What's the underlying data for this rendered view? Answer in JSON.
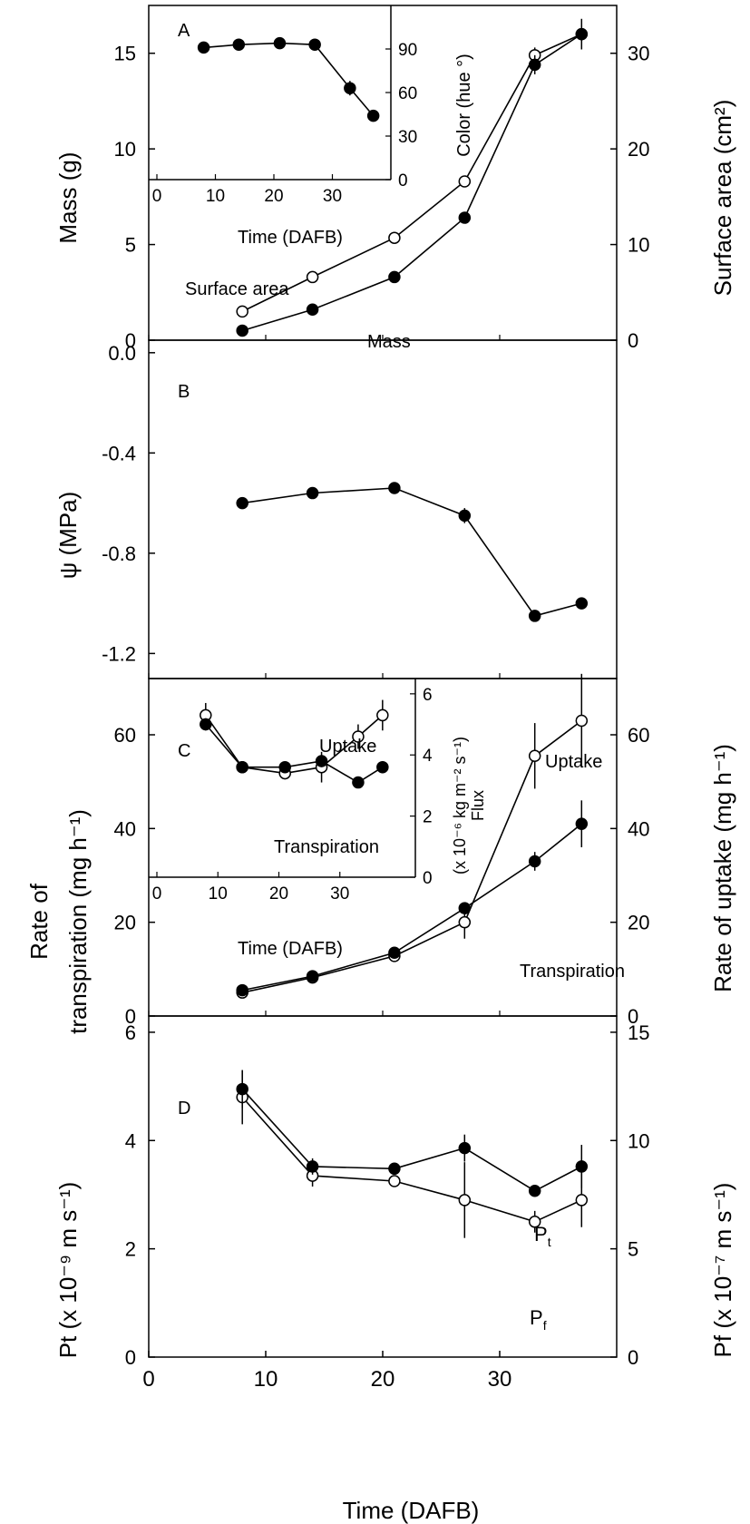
{
  "chart_data": [
    {
      "panel": "A",
      "type": "scatter",
      "panel_label": "A",
      "xlim": [
        0,
        40
      ],
      "ylim": [
        0,
        17.5
      ],
      "ylim_right": [
        0,
        35
      ],
      "ylabel": "Mass (g)",
      "ylabel_right": "Surface area (cm²)",
      "yticks": [
        0,
        5,
        10,
        15
      ],
      "yticks_right": [
        0,
        10,
        20,
        30
      ],
      "series": [
        {
          "name": "Mass",
          "axis": "left",
          "marker": "filled",
          "x": [
            8,
            14,
            21,
            27,
            33,
            37
          ],
          "y": [
            0.5,
            1.6,
            3.3,
            6.4,
            14.4,
            16.0
          ],
          "err": [
            0.1,
            0.1,
            0.1,
            0.3,
            0.5,
            0.2
          ]
        },
        {
          "name": "Surface area",
          "axis": "right",
          "marker": "open",
          "x": [
            8,
            14,
            21,
            27,
            33,
            37
          ],
          "y": [
            3.0,
            6.6,
            10.7,
            16.6,
            29.8,
            32.0
          ],
          "err": [
            0.2,
            0.2,
            0.3,
            0.6,
            0.8,
            1.6
          ]
        }
      ],
      "annotations": [
        "Surface area",
        "Mass"
      ],
      "inset": {
        "xlabel": "Time (DAFB)",
        "ylabel_right": "Color (hue °)",
        "xlim": [
          0,
          40
        ],
        "ylim": [
          0,
          120
        ],
        "xticks": [
          0,
          10,
          20,
          30
        ],
        "yticks": [
          0,
          30,
          60,
          90
        ],
        "series": [
          {
            "marker": "filled",
            "x": [
              8,
              14,
              21,
              27,
              33,
              37
            ],
            "y": [
              91,
              93,
              94,
              93,
              63,
              44
            ],
            "err": [
              1,
              1,
              1,
              1,
              5,
              2
            ]
          }
        ]
      }
    },
    {
      "panel": "B",
      "type": "line",
      "panel_label": "B",
      "xlim": [
        0,
        40
      ],
      "ylim": [
        -1.3,
        0.05
      ],
      "ylabel": "ψ (MPa)",
      "yticks": [
        0.0,
        -0.4,
        -0.8,
        -1.2
      ],
      "yticklabels": [
        "0.0",
        "-0.4",
        "-0.8",
        "-1.2"
      ],
      "series": [
        {
          "marker": "filled",
          "x": [
            8,
            14,
            21,
            27,
            33,
            37
          ],
          "y": [
            -0.6,
            -0.56,
            -0.54,
            -0.65,
            -1.05,
            -1.0
          ],
          "err": [
            0.01,
            0.01,
            0.01,
            0.03,
            0.01,
            0.02
          ]
        }
      ]
    },
    {
      "panel": "C",
      "type": "scatter",
      "panel_label": "C",
      "xlim": [
        0,
        40
      ],
      "ylim": [
        0,
        72
      ],
      "ylim_right": [
        0,
        72
      ],
      "ylabel_line1": "Rate of",
      "ylabel_line2": "transpiration (mg h⁻¹)",
      "ylabel_right": "Rate of uptake (mg h⁻¹)",
      "yticks": [
        0,
        20,
        40,
        60
      ],
      "yticks_right": [
        0,
        20,
        40,
        60
      ],
      "series": [
        {
          "name": "Transpiration",
          "axis": "left",
          "marker": "filled",
          "x": [
            8,
            14,
            21,
            27,
            33,
            37
          ],
          "y": [
            5.5,
            8.5,
            13.5,
            23.0,
            33.0,
            41.0
          ],
          "err": [
            0.4,
            0.5,
            0.6,
            1.0,
            2.0,
            5.0
          ]
        },
        {
          "name": "Uptake",
          "axis": "right",
          "marker": "open",
          "x": [
            8,
            14,
            21,
            27,
            33,
            37
          ],
          "y": [
            5.0,
            8.2,
            12.8,
            20.0,
            55.5,
            63.0
          ],
          "err": [
            0.4,
            0.5,
            0.8,
            3.5,
            7.0,
            10.0
          ]
        }
      ],
      "annotations": [
        "Uptake",
        "Transpiration"
      ],
      "inset": {
        "xlabel": "Time (DAFB)",
        "ylabel_right_line1": "Flux",
        "ylabel_right_line2": "(x 10⁻⁶ kg m⁻² s⁻¹)",
        "xlim": [
          0,
          40
        ],
        "ylim": [
          0,
          6.5
        ],
        "xticks": [
          0,
          10,
          20,
          30
        ],
        "yticks": [
          0,
          2,
          4,
          6
        ],
        "annotations": [
          "Uptake",
          "Transpiration"
        ],
        "series": [
          {
            "name": "Transpiration",
            "marker": "filled",
            "x": [
              8,
              14,
              21,
              27,
              33,
              37
            ],
            "y": [
              5.0,
              3.6,
              3.6,
              3.8,
              3.1,
              3.6
            ],
            "err": [
              0.2,
              0.1,
              0.1,
              0.2,
              0.1,
              0.2
            ]
          },
          {
            "name": "Uptake",
            "marker": "open",
            "x": [
              8,
              14,
              21,
              27,
              33,
              37
            ],
            "y": [
              5.3,
              3.6,
              3.4,
              3.6,
              4.6,
              5.3
            ],
            "err": [
              0.4,
              0.1,
              0.2,
              0.5,
              0.4,
              0.5
            ]
          }
        ]
      }
    },
    {
      "panel": "D",
      "type": "scatter",
      "panel_label": "D",
      "xlim": [
        0,
        40
      ],
      "ylim": [
        0,
        6.3
      ],
      "ylim_right": [
        0,
        15.75
      ],
      "ylabel": "Pt (x 10⁻⁹ m s⁻¹)",
      "ylabel_right": "Pf (x 10⁻⁷ m s⁻¹)",
      "xlabel": "Time (DAFB)",
      "xticks": [
        0,
        10,
        20,
        30
      ],
      "yticks": [
        0,
        2,
        4,
        6
      ],
      "yticks_right": [
        0,
        5,
        10,
        15
      ],
      "series": [
        {
          "name": "Pt",
          "axis": "left",
          "marker": "filled",
          "x": [
            8,
            14,
            21,
            27,
            33,
            37
          ],
          "y": [
            4.95,
            3.52,
            3.48,
            3.86,
            3.07,
            3.52
          ],
          "err": [
            0.35,
            0.15,
            0.1,
            0.25,
            0.1,
            0.4
          ]
        },
        {
          "name": "Pf",
          "axis": "left",
          "marker": "open",
          "x": [
            8,
            14,
            21,
            27,
            33,
            37
          ],
          "y": [
            4.8,
            3.35,
            3.25,
            2.9,
            2.5,
            2.9
          ],
          "err": [
            0.5,
            0.2,
            0.1,
            0.7,
            0.2,
            0.5
          ]
        }
      ],
      "annotations": [
        "Pt",
        "Pf"
      ]
    }
  ],
  "labels": {
    "A": "A",
    "B": "B",
    "C": "C",
    "D": "D",
    "surface_area": "Surface area",
    "mass": "Mass",
    "uptake": "Uptake",
    "transpiration": "Transpiration",
    "pt": "P",
    "pt_sub": "t",
    "pf": "P",
    "pf_sub": "f",
    "time": "Time (DAFB)",
    "ylabel_mass": "Mass (g)",
    "ylabel_surface": "Surface area (cm²)",
    "ylabel_psi": "ψ (MPa)",
    "ylabel_rate1": "Rate of",
    "ylabel_rate2": "transpiration (mg h⁻¹)",
    "ylabel_uptake": "Rate of uptake (mg h⁻¹)",
    "ylabel_pt": "Pt (x 10⁻⁹ m s⁻¹)",
    "ylabel_pf": "Pf (x 10⁻⁷ m s⁻¹)",
    "inset_color": "Color (hue °)",
    "inset_flux1": "Flux",
    "inset_flux2": "(x 10⁻⁶ kg m⁻² s⁻¹)"
  }
}
